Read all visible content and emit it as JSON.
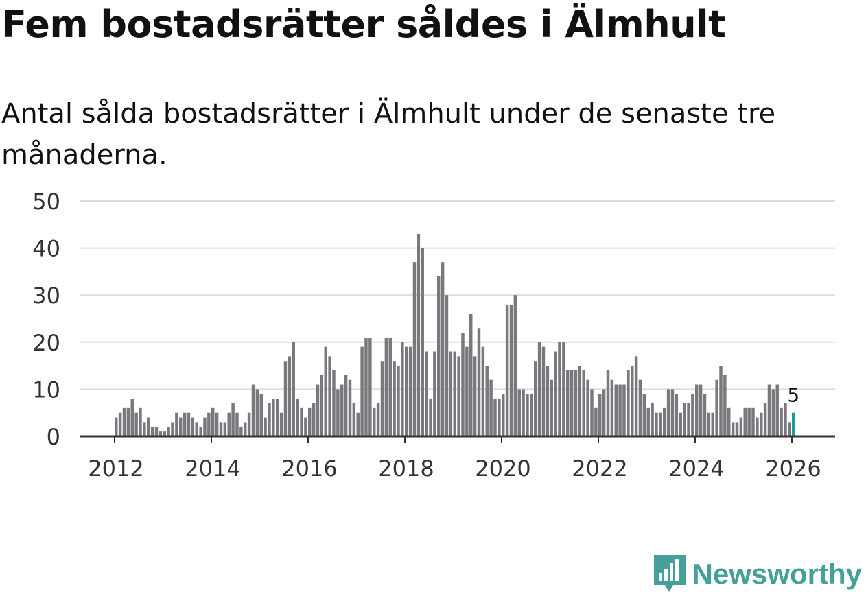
{
  "title": "Fem bostadsrätter såldes i Älmhult",
  "subtitle": "Antal sålda bostadsrätter i Älmhult under de senaste tre månaderna.",
  "brand": {
    "name": "Newsworthy",
    "icon": "newsworthy-logo-icon"
  },
  "colors": {
    "bar": "#79787d",
    "highlight": "#1a9e96",
    "grid": "#dcdcdc",
    "axis": "#333333",
    "brand": "#46a09a"
  },
  "chart_data": {
    "type": "bar",
    "title": "Fem bostadsrätter såldes i Älmhult",
    "xlabel": "",
    "ylabel": "",
    "ylim": [
      0,
      50
    ],
    "yticks": [
      0,
      10,
      20,
      30,
      40,
      50
    ],
    "ytick_labels": [
      "0",
      "10",
      "20",
      "30",
      "40",
      "50"
    ],
    "xticks": [
      2012,
      2014,
      2016,
      2018,
      2020,
      2022,
      2024,
      2026
    ],
    "xtick_labels": [
      "2012",
      "2014",
      "2016",
      "2018",
      "2020",
      "2022",
      "2024",
      "2026"
    ],
    "start": "2012-01",
    "frequency": "monthly",
    "highlight_last": true,
    "last_value_label": "5",
    "series": [
      {
        "name": "Antal sålda bostadsrätter",
        "values": [
          4,
          5,
          6,
          6,
          8,
          5,
          6,
          3,
          4,
          2,
          2,
          1,
          1,
          2,
          3,
          5,
          4,
          5,
          5,
          4,
          3,
          2,
          4,
          5,
          6,
          5,
          3,
          3,
          5,
          7,
          5,
          2,
          3,
          5,
          11,
          10,
          9,
          4,
          7,
          8,
          8,
          5,
          16,
          17,
          20,
          8,
          6,
          4,
          6,
          7,
          11,
          13,
          19,
          17,
          14,
          10,
          11,
          13,
          12,
          7,
          5,
          19,
          21,
          21,
          6,
          7,
          16,
          21,
          21,
          16,
          15,
          20,
          19,
          19,
          37,
          43,
          40,
          18,
          8,
          18,
          34,
          37,
          30,
          18,
          18,
          17,
          22,
          19,
          26,
          17,
          23,
          19,
          15,
          12,
          8,
          8,
          9,
          28,
          28,
          30,
          10,
          10,
          9,
          9,
          16,
          20,
          19,
          15,
          12,
          18,
          20,
          20,
          14,
          14,
          14,
          15,
          14,
          12,
          10,
          6,
          9,
          10,
          14,
          12,
          11,
          11,
          11,
          14,
          15,
          17,
          12,
          9,
          6,
          7,
          5,
          5,
          6,
          10,
          10,
          9,
          5,
          7,
          7,
          9,
          11,
          11,
          9,
          5,
          5,
          12,
          15,
          13,
          6,
          3,
          3,
          4,
          6,
          6,
          6,
          4,
          5,
          7,
          11,
          10,
          11,
          6,
          7,
          3,
          5
        ]
      }
    ]
  }
}
